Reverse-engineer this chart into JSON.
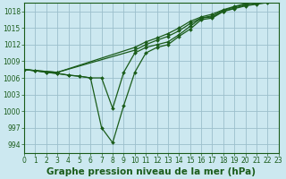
{
  "title": "Graphe pression niveau de la mer (hPa)",
  "background_color": "#cce8f0",
  "grid_color": "#9bbfcc",
  "line_color": "#1a5c1a",
  "series": [
    {
      "x": [
        0,
        1,
        2,
        3,
        4,
        5,
        6,
        7,
        8,
        9,
        10,
        11,
        12,
        13,
        14,
        15,
        16,
        17,
        18,
        19,
        20,
        21,
        22,
        23
      ],
      "y": [
        1007.5,
        1007.3,
        1007.0,
        1006.8,
        1006.5,
        1006.3,
        1006.0,
        997.0,
        994.3,
        1001.0,
        1007.0,
        1010.5,
        1011.5,
        1012.0,
        1013.5,
        1014.8,
        1016.5,
        1016.8,
        1018.0,
        1018.5,
        1019.0,
        1019.3,
        1019.6,
        1019.8
      ]
    },
    {
      "x": [
        0,
        1,
        2,
        3,
        4,
        5,
        6,
        7,
        8,
        9,
        10,
        11,
        12,
        13,
        14,
        15,
        16,
        17,
        18,
        19,
        20,
        21,
        22,
        23
      ],
      "y": [
        1007.5,
        1007.3,
        1007.0,
        1006.8,
        1006.5,
        1006.3,
        1006.0,
        1006.0,
        1000.5,
        1007.0,
        1010.5,
        1011.5,
        1012.0,
        1012.5,
        1013.8,
        1015.3,
        1016.8,
        1017.0,
        1018.0,
        1018.6,
        1019.1,
        1019.4,
        1019.7,
        1019.9
      ]
    },
    {
      "x": [
        0,
        3,
        10,
        11,
        12,
        13,
        14,
        15,
        16,
        17,
        18,
        19,
        20,
        21,
        22,
        23
      ],
      "y": [
        1007.5,
        1007.0,
        1011.0,
        1012.0,
        1012.8,
        1013.5,
        1014.5,
        1015.8,
        1016.8,
        1017.2,
        1018.2,
        1018.8,
        1019.3,
        1019.6,
        1019.9,
        1020.1
      ]
    },
    {
      "x": [
        0,
        3,
        10,
        11,
        12,
        13,
        14,
        15,
        16,
        17,
        18,
        19,
        20,
        21,
        22,
        23
      ],
      "y": [
        1007.5,
        1007.0,
        1011.5,
        1012.5,
        1013.2,
        1014.0,
        1015.0,
        1016.2,
        1017.0,
        1017.5,
        1018.3,
        1018.9,
        1019.4,
        1019.7,
        1020.0,
        1020.2
      ]
    }
  ],
  "xlim": [
    0,
    23
  ],
  "ylim": [
    992.5,
    1019.5
  ],
  "yticks": [
    994,
    997,
    1000,
    1003,
    1006,
    1009,
    1012,
    1015,
    1018
  ],
  "xticks": [
    0,
    1,
    2,
    3,
    4,
    5,
    6,
    7,
    8,
    9,
    10,
    11,
    12,
    13,
    14,
    15,
    16,
    17,
    18,
    19,
    20,
    21,
    22,
    23
  ],
  "title_fontsize": 7.5,
  "tick_fontsize": 5.5,
  "marker_size": 2.0,
  "linewidth": 0.9
}
